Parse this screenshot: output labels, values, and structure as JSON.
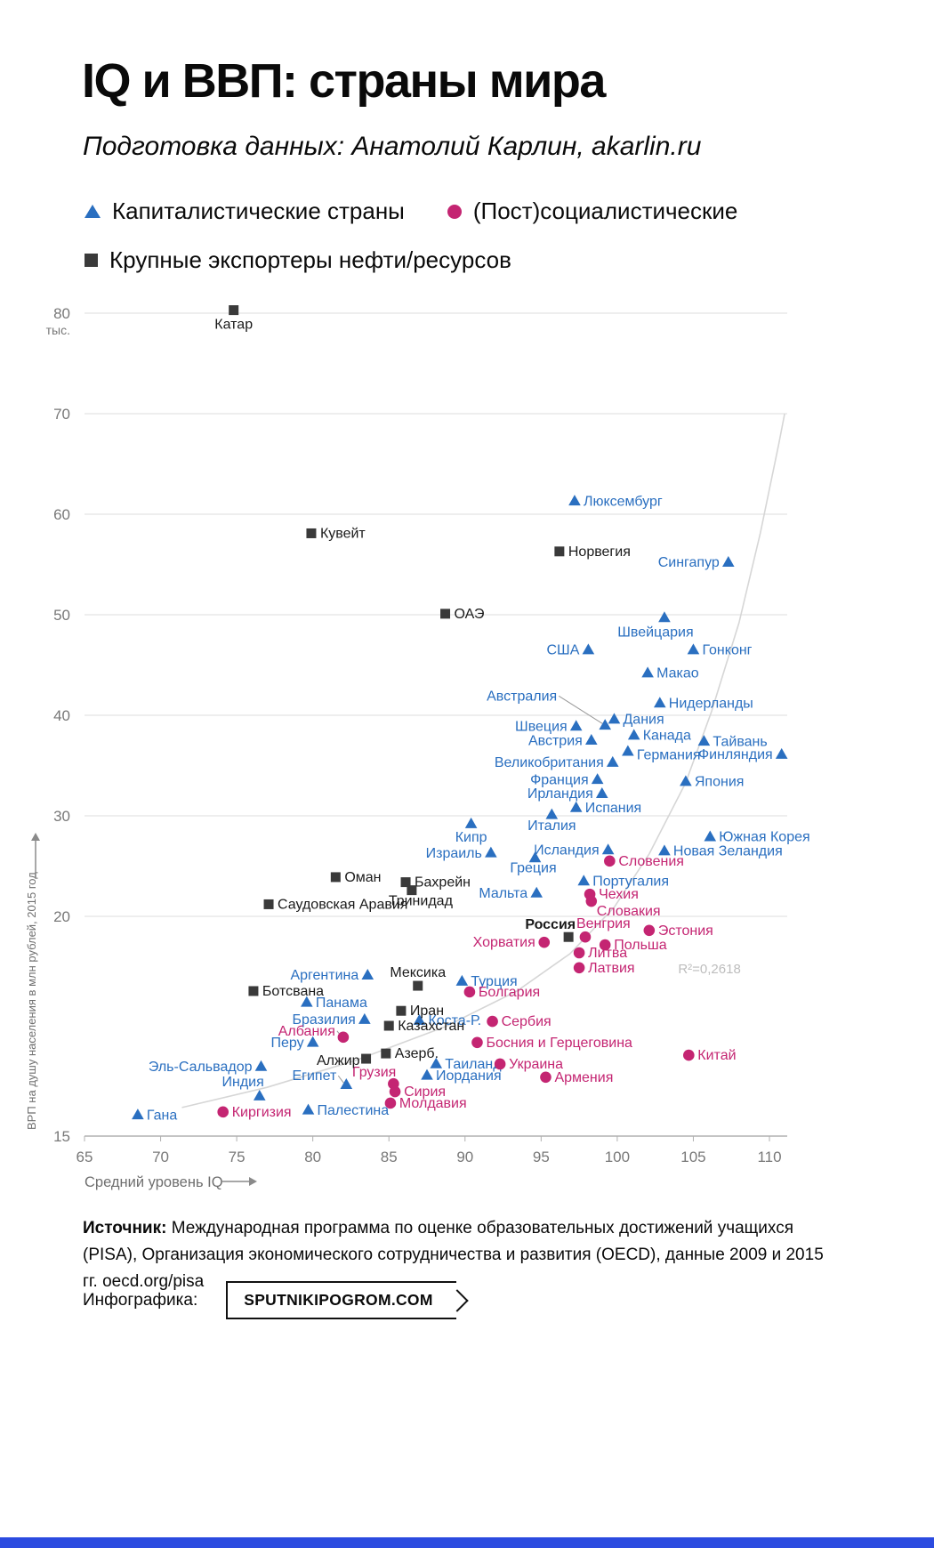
{
  "header": {
    "title": "IQ и ВВП: страны мира",
    "subtitle": "Подготовка данных: Анатолий Карлин, akarlin.ru"
  },
  "legend": {
    "items": [
      {
        "marker": "triangle",
        "label": "Капиталистические страны"
      },
      {
        "marker": "circle",
        "label": "(Пост)социалистические"
      },
      {
        "marker": "square",
        "label": "Крупные экспортеры нефти/ресурсов"
      }
    ]
  },
  "colors": {
    "capitalist": "#2a6fc0",
    "socialist": "#c42572",
    "oil": "#3a3a3a",
    "oil_label": "#1a1a1a",
    "grid": "#dedede",
    "axis": "#b0b0b0",
    "trend": "#d6d6d6",
    "footer_bar": "#2b4be0"
  },
  "footer": {
    "source_label": "Источник:",
    "source_text": "Международная программа по оценке образовательных достижений учащихся (PISA), Организация экономического сотрудничества и развития (OECD), данные 2009 и 2015 гг. oecd.org/pisa",
    "infographic_label": "Инфографика:",
    "brand": "SPUTNIKIPOGROM.COM"
  },
  "chart_data": {
    "type": "scatter",
    "xlabel": "Средний уровень IQ",
    "ylabel": "ВРП на душу населения в млн рублей, 2015 год",
    "y_unit": "тыс.",
    "x_ticks": [
      65,
      70,
      75,
      80,
      85,
      90,
      95,
      100,
      105,
      110
    ],
    "y_ticks": [
      80,
      70,
      60,
      50,
      40,
      30,
      20,
      15
    ],
    "xlim": [
      65,
      110
    ],
    "ylim": [
      15,
      80
    ],
    "y_compressed_below": 20,
    "r2_label": "R²=0,2618",
    "r2_at": {
      "iq": 104.0,
      "grp": 18.7
    },
    "trend": {
      "points": [
        [
          71.4,
          15.65
        ],
        [
          77.0,
          16.11
        ],
        [
          82.8,
          16.72
        ],
        [
          88.7,
          17.49
        ],
        [
          93.4,
          18.3
        ],
        [
          96.9,
          19.15
        ],
        [
          99.8,
          20.9
        ],
        [
          102.1,
          26.2
        ],
        [
          104.5,
          33.3
        ],
        [
          106.2,
          40.4
        ],
        [
          108.0,
          49.2
        ],
        [
          109.4,
          58.1
        ],
        [
          110.6,
          66.9
        ],
        [
          111.0,
          70.0
        ]
      ]
    },
    "series": [
      {
        "id": "capitalist",
        "name": "Капиталистические страны",
        "marker": "triangle",
        "color": "#2a6fc0",
        "points": [
          {
            "name": "Люксембург",
            "iq": 97.2,
            "grp": 61.3,
            "side": "right"
          },
          {
            "name": "Сингапур",
            "iq": 107.3,
            "grp": 55.2,
            "side": "left"
          },
          {
            "name": "Швейцария",
            "iq": 103.1,
            "grp": 49.7,
            "side": "below",
            "lox": -10,
            "loy": 21
          },
          {
            "name": "Гонконг",
            "iq": 105.0,
            "grp": 46.5,
            "side": "right"
          },
          {
            "name": "США",
            "iq": 98.1,
            "grp": 46.5,
            "side": "left"
          },
          {
            "name": "Макао",
            "iq": 102.0,
            "grp": 44.2,
            "side": "right"
          },
          {
            "name": "Нидерланды",
            "iq": 102.8,
            "grp": 41.2,
            "side": "right"
          },
          {
            "name": "Дания",
            "iq": 99.8,
            "grp": 39.6,
            "side": "right"
          },
          {
            "name": "Австралия",
            "iq": 99.2,
            "grp": 39.0,
            "side": "left",
            "lox": -54,
            "loy": -28,
            "leader": true
          },
          {
            "name": "Швеция",
            "iq": 97.3,
            "grp": 38.9,
            "side": "left"
          },
          {
            "name": "Канада",
            "iq": 101.1,
            "grp": 38.0,
            "side": "right"
          },
          {
            "name": "Австрия",
            "iq": 98.3,
            "grp": 37.5,
            "side": "left"
          },
          {
            "name": "Тайвань",
            "iq": 105.7,
            "grp": 37.4,
            "side": "right"
          },
          {
            "name": "Финляндия",
            "iq": 110.8,
            "grp": 36.1,
            "side": "left"
          },
          {
            "name": "Германия",
            "iq": 100.7,
            "grp": 36.4,
            "side": "right",
            "loy": 9
          },
          {
            "name": "Великобритания",
            "iq": 99.7,
            "grp": 35.3,
            "side": "left"
          },
          {
            "name": "Франция",
            "iq": 98.7,
            "grp": 33.6,
            "side": "left"
          },
          {
            "name": "Япония",
            "iq": 104.5,
            "grp": 33.4,
            "side": "right"
          },
          {
            "name": "Ирландия",
            "iq": 99.0,
            "grp": 32.2,
            "side": "left"
          },
          {
            "name": "Испания",
            "iq": 97.3,
            "grp": 30.8,
            "side": "right"
          },
          {
            "name": "Италия",
            "iq": 95.7,
            "grp": 30.1,
            "side": "below",
            "loy": 17
          },
          {
            "name": "Кипр",
            "iq": 90.4,
            "grp": 29.2,
            "side": "below",
            "loy": 20
          },
          {
            "name": "Южная Корея",
            "iq": 106.1,
            "grp": 27.9,
            "side": "right"
          },
          {
            "name": "Исландия",
            "iq": 99.4,
            "grp": 26.6,
            "side": "left"
          },
          {
            "name": "Новая Зеландия",
            "iq": 103.1,
            "grp": 26.5,
            "side": "right"
          },
          {
            "name": "Израиль",
            "iq": 91.7,
            "grp": 26.3,
            "side": "left"
          },
          {
            "name": "Греция",
            "iq": 94.6,
            "grp": 25.8,
            "side": "below",
            "lox": -2,
            "loy": 16
          },
          {
            "name": "Португалия",
            "iq": 97.8,
            "grp": 23.5,
            "side": "right"
          },
          {
            "name": "Мальта",
            "iq": 94.7,
            "grp": 22.3,
            "side": "left"
          },
          {
            "name": "Аргентина",
            "iq": 83.6,
            "grp": 18.66,
            "side": "left"
          },
          {
            "name": "Турция",
            "iq": 89.8,
            "grp": 18.52,
            "side": "right"
          },
          {
            "name": "Панама",
            "iq": 79.6,
            "grp": 18.04,
            "side": "right"
          },
          {
            "name": "Бразилия",
            "iq": 83.4,
            "grp": 17.65,
            "side": "left"
          },
          {
            "name": "Коста-Р.",
            "iq": 87.0,
            "grp": 17.63,
            "side": "right"
          },
          {
            "name": "Перу",
            "iq": 80.0,
            "grp": 17.13,
            "side": "left"
          },
          {
            "name": "Эль-Сальвадор",
            "iq": 76.6,
            "grp": 16.58,
            "side": "left"
          },
          {
            "name": "Таиланд",
            "iq": 88.1,
            "grp": 16.64,
            "side": "right"
          },
          {
            "name": "Иордания",
            "iq": 87.5,
            "grp": 16.38,
            "side": "right"
          },
          {
            "name": "Египет",
            "iq": 82.2,
            "grp": 16.17,
            "side": "left",
            "lox": -11,
            "loy": -5,
            "leader": true
          },
          {
            "name": "Индия",
            "iq": 76.5,
            "grp": 15.91,
            "side": "left",
            "lox": 5,
            "loy": -11
          },
          {
            "name": "Палестина",
            "iq": 79.7,
            "grp": 15.59,
            "side": "right"
          },
          {
            "name": "Гана",
            "iq": 68.5,
            "grp": 15.48,
            "side": "right"
          }
        ]
      },
      {
        "id": "socialist",
        "name": "(Пост)социалистические",
        "marker": "circle",
        "color": "#c42572",
        "points": [
          {
            "name": "Словения",
            "iq": 99.5,
            "grp": 25.5,
            "side": "right"
          },
          {
            "name": "Чехия",
            "iq": 98.2,
            "grp": 22.2,
            "side": "right"
          },
          {
            "name": "Словакия",
            "iq": 98.3,
            "grp": 21.5,
            "side": "right",
            "lox": 6,
            "loy": 16
          },
          {
            "name": "Венгрия",
            "iq": 97.9,
            "grp": 19.53,
            "side": "right",
            "lox": -10,
            "loy": -10
          },
          {
            "name": "Эстония",
            "iq": 102.1,
            "grp": 19.68,
            "side": "right"
          },
          {
            "name": "Хорватия",
            "iq": 95.2,
            "grp": 19.41,
            "side": "left"
          },
          {
            "name": "Польша",
            "iq": 99.2,
            "grp": 19.35,
            "side": "right"
          },
          {
            "name": "Литва",
            "iq": 97.5,
            "grp": 19.17,
            "side": "right"
          },
          {
            "name": "Латвия",
            "iq": 97.5,
            "grp": 18.83,
            "side": "right"
          },
          {
            "name": "Болгария",
            "iq": 90.3,
            "grp": 18.28,
            "side": "right"
          },
          {
            "name": "Сербия",
            "iq": 91.8,
            "grp": 17.61,
            "side": "right"
          },
          {
            "name": "Босния и Герцеговина",
            "iq": 90.8,
            "grp": 17.13,
            "side": "right"
          },
          {
            "name": "Албания",
            "iq": 82.0,
            "grp": 17.25,
            "side": "left",
            "lox": -9,
            "loy": -2,
            "leader": true
          },
          {
            "name": "Украина",
            "iq": 92.3,
            "grp": 16.64,
            "side": "right"
          },
          {
            "name": "Армения",
            "iq": 95.3,
            "grp": 16.34,
            "side": "right"
          },
          {
            "name": "Грузия",
            "iq": 85.3,
            "grp": 16.19,
            "side": "left",
            "lox": 3,
            "loy": -8
          },
          {
            "name": "Сирия",
            "iq": 85.4,
            "grp": 16.01,
            "side": "right"
          },
          {
            "name": "Молдавия",
            "iq": 85.1,
            "grp": 15.75,
            "side": "right"
          },
          {
            "name": "Киргизия",
            "iq": 74.1,
            "grp": 15.55,
            "side": "right"
          },
          {
            "name": "Китай",
            "iq": 104.7,
            "grp": 16.84,
            "side": "right"
          }
        ]
      },
      {
        "id": "oil",
        "name": "Крупные экспортеры нефти/ресурсов",
        "marker": "square",
        "color": "#3a3a3a",
        "label_color": "#1a1a1a",
        "points": [
          {
            "name": "Катар",
            "iq": 74.8,
            "grp": 80.3,
            "side": "below",
            "loy": 21
          },
          {
            "name": "Кувейт",
            "iq": 79.9,
            "grp": 58.1,
            "side": "right"
          },
          {
            "name": "Норвегия",
            "iq": 96.2,
            "grp": 56.3,
            "side": "right"
          },
          {
            "name": "ОАЭ",
            "iq": 88.7,
            "grp": 50.1,
            "side": "right"
          },
          {
            "name": "Оман",
            "iq": 81.5,
            "grp": 23.9,
            "side": "right"
          },
          {
            "name": "Бахрейн",
            "iq": 86.1,
            "grp": 23.4,
            "side": "right"
          },
          {
            "name": "Тринидад",
            "iq": 86.5,
            "grp": 22.6,
            "side": "below",
            "lox": 10,
            "loy": 17
          },
          {
            "name": "Саудовская Аравия",
            "iq": 77.1,
            "grp": 21.2,
            "side": "right"
          },
          {
            "name": "Россия",
            "iq": 96.8,
            "grp": 19.53,
            "side": "left",
            "lox": 8,
            "loy": -9,
            "bold": true
          },
          {
            "name": "Мексика",
            "iq": 86.9,
            "grp": 18.42,
            "side": "above",
            "loy": -10
          },
          {
            "name": "Ботсвана",
            "iq": 76.1,
            "grp": 18.3,
            "side": "right"
          },
          {
            "name": "Иран",
            "iq": 85.8,
            "grp": 17.85,
            "side": "right"
          },
          {
            "name": "Казахстан",
            "iq": 85.0,
            "grp": 17.51,
            "side": "right"
          },
          {
            "name": "Азерб.",
            "iq": 84.8,
            "grp": 16.88,
            "side": "right"
          },
          {
            "name": "Алжир",
            "iq": 83.5,
            "grp": 16.76,
            "side": "left",
            "lox": -7,
            "loy": 7
          }
        ]
      }
    ]
  }
}
